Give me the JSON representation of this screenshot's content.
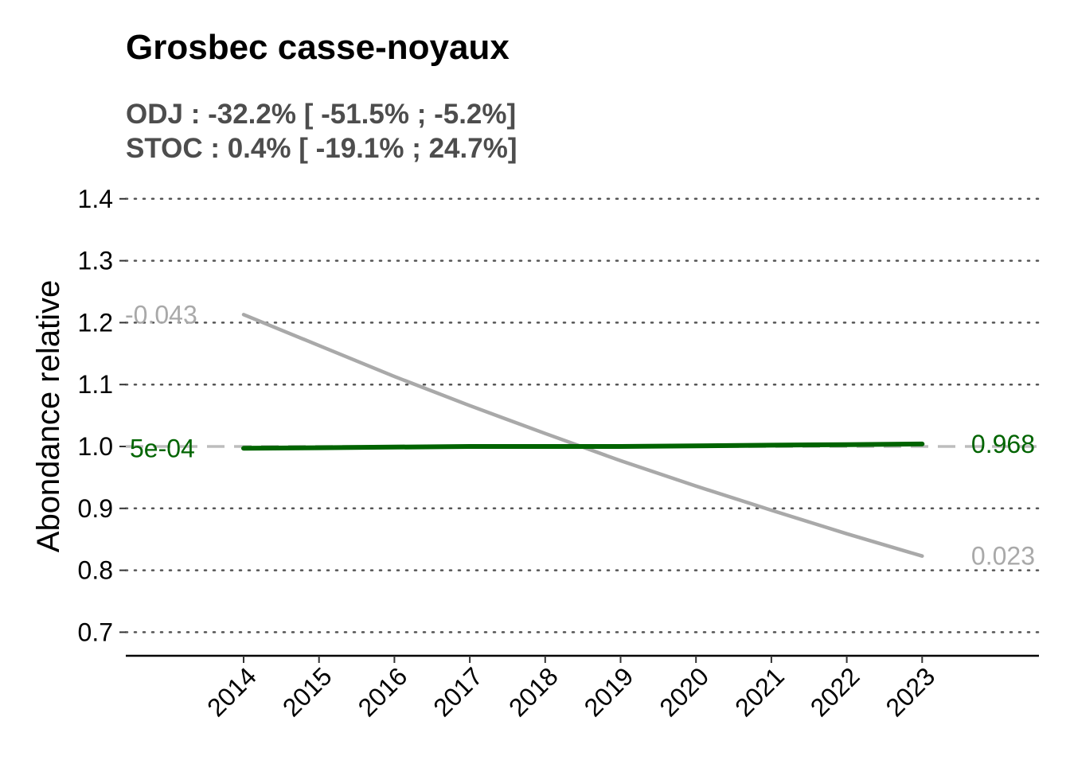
{
  "chart_data": {
    "type": "line",
    "title": "Grosbec casse-noyaux",
    "subtitle_lines": [
      "ODJ : -32.2% [ -51.5% ; -5.2%]",
      "STOC : 0.4% [ -19.1% ; 24.7%]"
    ],
    "xlabel": "",
    "ylabel": "Abondance relative",
    "x": [
      2014,
      2015,
      2016,
      2017,
      2018,
      2019,
      2020,
      2021,
      2022,
      2023
    ],
    "x_tick_labels": [
      "2014",
      "2015",
      "2016",
      "2017",
      "2018",
      "2019",
      "2020",
      "2021",
      "2022",
      "2023"
    ],
    "ylim": [
      0.665,
      1.43
    ],
    "y_ticks": [
      0.7,
      0.8,
      0.9,
      1.0,
      1.1,
      1.2,
      1.3,
      1.4
    ],
    "y_tick_labels": [
      "0.7",
      "0.8",
      "0.9",
      "1.0",
      "1.1",
      "1.2",
      "1.3",
      "1.4"
    ],
    "reference_line": 1.0,
    "grid": "horizontal-dotted",
    "legend": "none",
    "series": [
      {
        "key": "odj",
        "color": "#a9a9a9",
        "values": [
          1.213,
          1.163,
          1.113,
          1.066,
          1.021,
          0.977,
          0.936,
          0.897,
          0.859,
          0.823
        ],
        "start_label": "-0.043",
        "end_label": "0.023"
      },
      {
        "key": "stoc",
        "color": "#006400",
        "values": [
          0.997,
          0.998,
          0.999,
          1.0,
          1.0,
          1.0,
          1.001,
          1.002,
          1.003,
          1.004
        ],
        "start_label": "5e-04",
        "end_label": "0.968"
      }
    ]
  }
}
